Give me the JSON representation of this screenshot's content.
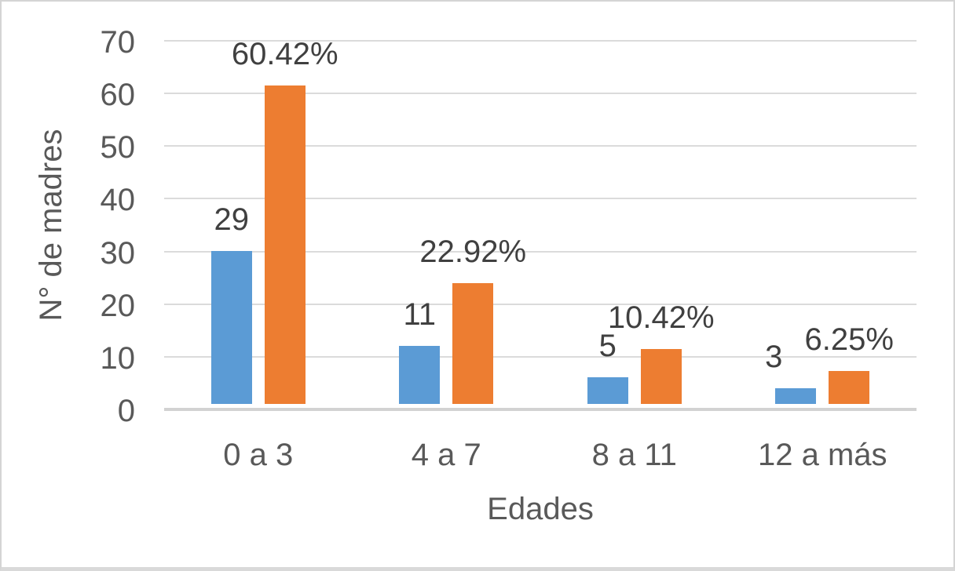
{
  "window": {
    "background": "#ffffff",
    "frame_border_color": "#d4d4d4"
  },
  "chart_data": {
    "type": "bar",
    "title": "",
    "xlabel": "Edades",
    "ylabel": "N° de madres",
    "categories": [
      "0 a 3",
      "4 a 7",
      "8 a 11",
      "12 a más"
    ],
    "series": [
      {
        "name": "blue-count-bars",
        "color": "#5B9BD5",
        "values": [
          29,
          11,
          5,
          3
        ],
        "data_labels": [
          "29",
          "11",
          "5",
          "3"
        ]
      },
      {
        "name": "orange-percent-bars",
        "color": "#ED7D31",
        "values": [
          60.42,
          22.92,
          10.42,
          6.25
        ],
        "data_labels": [
          "60.42%",
          "22.92%",
          "10.42%",
          "6.25%"
        ]
      }
    ],
    "ylim": [
      0,
      70
    ],
    "y_ticks": [
      0,
      10,
      20,
      30,
      40,
      50,
      60,
      70
    ],
    "y_tick_labels": [
      "0",
      "10",
      "20",
      "30",
      "40",
      "50",
      "60",
      "70"
    ],
    "grid": true,
    "legend_position": "none",
    "colors": {
      "gridline": "#DBDBDB",
      "axis_line": "#D2D2D2",
      "tick_text": "#595959",
      "data_label_text": "#404040"
    }
  }
}
